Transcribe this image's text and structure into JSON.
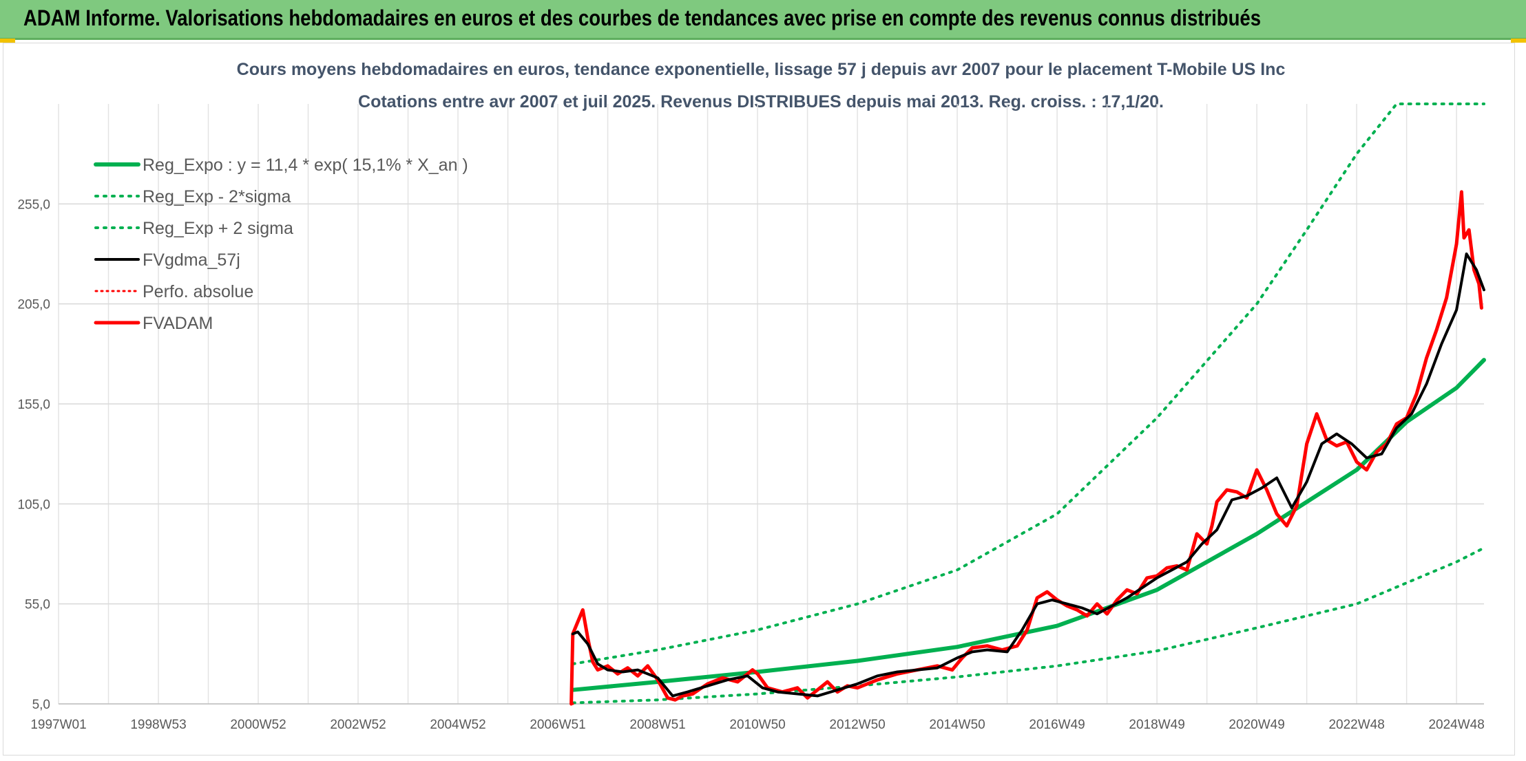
{
  "header": {
    "title": "ADAM Informe. Valorisations hebdomadaires en euros et des courbes de tendances avec prise en compte des revenus connus distribués"
  },
  "colors": {
    "header_bg": "#7fc97f",
    "green": "#00b050",
    "red": "#ff0000",
    "black": "#000000"
  },
  "chart_data": {
    "type": "line",
    "title": "Cours moyens hebdomadaires en euros, tendance exponentielle, lissage 57 j depuis avr 2007 pour le placement T-Mobile US Inc",
    "subtitle": "Cotations entre avr 2007 et juil 2025. Revenus DISTRIBUES depuis mai 2013. Reg. croiss. : 17,1/20.",
    "xlabel": "",
    "ylabel": "",
    "x_range": [
      1997.0,
      2025.55
    ],
    "ylim": [
      5,
      305
    ],
    "y_ticks": [
      "5,0",
      "55,0",
      "105,0",
      "155,0",
      "205,0",
      "255,0"
    ],
    "y_tick_values": [
      5,
      55,
      105,
      155,
      205,
      255
    ],
    "x_ticks": [
      {
        "label": "1997W01",
        "x": 1997.0
      },
      {
        "label": "1998W53",
        "x": 1999.0
      },
      {
        "label": "2000W52",
        "x": 2001.0
      },
      {
        "label": "2002W52",
        "x": 2003.0
      },
      {
        "label": "2004W52",
        "x": 2005.0
      },
      {
        "label": "2006W51",
        "x": 2007.0
      },
      {
        "label": "2008W51",
        "x": 2009.0
      },
      {
        "label": "2010W50",
        "x": 2011.0
      },
      {
        "label": "2012W50",
        "x": 2013.0
      },
      {
        "label": "2014W50",
        "x": 2015.0
      },
      {
        "label": "2016W49",
        "x": 2017.0
      },
      {
        "label": "2018W49",
        "x": 2019.0
      },
      {
        "label": "2020W49",
        "x": 2021.0
      },
      {
        "label": "2022W48",
        "x": 2023.0
      },
      {
        "label": "2024W48",
        "x": 2025.0
      }
    ],
    "grid": true,
    "legend_position": "top-left",
    "legend": [
      {
        "label": "Reg_Expo : y = 11,4 * exp( 15,1% *  X_an )",
        "color": "#00b050",
        "style": "solid",
        "width": 6
      },
      {
        "label": "Reg_Exp - 2*sigma",
        "color": "#00b050",
        "style": "dotted",
        "width": 4
      },
      {
        "label": "Reg_Exp + 2 sigma",
        "color": "#00b050",
        "style": "dotted",
        "width": 4
      },
      {
        "label": "FVgdma_57j",
        "color": "#000000",
        "style": "solid",
        "width": 4
      },
      {
        "label": "Perfo. absolue",
        "color": "#ff0000",
        "style": "dotted",
        "width": 3
      },
      {
        "label": "FVADAM",
        "color": "#ff0000",
        "style": "solid",
        "width": 5
      }
    ],
    "series": [
      {
        "name": "Reg_Expo : y = 11,4 * exp( 15,1% *  X_an )",
        "color": "#00b050",
        "style": "solid",
        "width": 6,
        "x": [
          2007.3,
          2009.0,
          2011.0,
          2013.0,
          2015.0,
          2017.0,
          2019.0,
          2021.0,
          2023.0,
          2024.0,
          2025.0,
          2025.55
        ],
        "y": [
          12,
          16,
          21,
          26.5,
          33.5,
          44,
          62,
          90,
          122,
          146,
          163,
          177
        ]
      },
      {
        "name": "Reg_Exp - 2*sigma",
        "color": "#00b050",
        "style": "dotted",
        "width": 4,
        "x": [
          2007.3,
          2009.0,
          2011.0,
          2013.0,
          2015.0,
          2017.0,
          2019.0,
          2021.0,
          2023.0,
          2024.0,
          2025.0,
          2025.55
        ],
        "y": [
          5.5,
          7,
          10,
          14,
          18.5,
          24,
          31.5,
          43,
          55,
          65.5,
          76,
          83
        ]
      },
      {
        "name": "Reg_Exp + 2 sigma",
        "color": "#00b050",
        "style": "dotted",
        "width": 4,
        "x": [
          2007.3,
          2009.0,
          2011.0,
          2013.0,
          2015.0,
          2017.0,
          2019.0,
          2021.0,
          2022.0,
          2023.0,
          2023.8,
          2024.5,
          2025.55
        ],
        "y": [
          25,
          32,
          42,
          55,
          72,
          100,
          148,
          205,
          242,
          280,
          305,
          305,
          305
        ]
      },
      {
        "name": "FVgdma_57j",
        "color": "#000000",
        "style": "solid",
        "width": 4,
        "x": [
          2007.3,
          2007.4,
          2007.6,
          2007.8,
          2008.0,
          2008.3,
          2008.6,
          2009.0,
          2009.3,
          2009.6,
          2010.0,
          2010.4,
          2010.8,
          2011.1,
          2011.4,
          2011.8,
          2012.2,
          2012.6,
          2013.0,
          2013.4,
          2013.8,
          2014.2,
          2014.6,
          2015.0,
          2015.3,
          2015.6,
          2016.0,
          2016.3,
          2016.6,
          2016.9,
          2017.2,
          2017.5,
          2017.8,
          2018.1,
          2018.4,
          2018.7,
          2019.0,
          2019.3,
          2019.6,
          2019.9,
          2020.2,
          2020.5,
          2020.8,
          2021.1,
          2021.4,
          2021.7,
          2022.0,
          2022.3,
          2022.6,
          2022.9,
          2023.2,
          2023.5,
          2023.8,
          2024.1,
          2024.4,
          2024.7,
          2025.0,
          2025.2,
          2025.4,
          2025.55
        ],
        "y": [
          40,
          41,
          35,
          25,
          22,
          21,
          22,
          18,
          9,
          11,
          14,
          17,
          19,
          13,
          11,
          10,
          9,
          12,
          15,
          19,
          21,
          22,
          23,
          28,
          31,
          32,
          31,
          42,
          55,
          57,
          55,
          53,
          50,
          54,
          58,
          63,
          68,
          72,
          76,
          85,
          92,
          107,
          109,
          113,
          118,
          103,
          116,
          135,
          140,
          135,
          128,
          130,
          143,
          150,
          165,
          185,
          202,
          230,
          222,
          212
        ],
        "source_precision": "approximate"
      },
      {
        "name": "Perfo. absolue",
        "color": "#ff0000",
        "style": "dotted",
        "width": 3,
        "x": [
          2007.3,
          2007.3
        ],
        "y": [
          5,
          5
        ]
      },
      {
        "name": "FVADAM",
        "color": "#ff0000",
        "style": "solid",
        "width": 5,
        "x": [
          2007.27,
          2007.3,
          2007.4,
          2007.5,
          2007.6,
          2007.7,
          2007.8,
          2008.0,
          2008.2,
          2008.4,
          2008.6,
          2008.8,
          2009.0,
          2009.2,
          2009.35,
          2009.5,
          2009.7,
          2010.0,
          2010.3,
          2010.6,
          2010.9,
          2011.0,
          2011.2,
          2011.5,
          2011.8,
          2012.0,
          2012.2,
          2012.4,
          2012.6,
          2012.8,
          2013.0,
          2013.4,
          2013.8,
          2014.2,
          2014.6,
          2014.9,
          2015.1,
          2015.3,
          2015.6,
          2015.9,
          2016.2,
          2016.4,
          2016.6,
          2016.8,
          2017.0,
          2017.2,
          2017.4,
          2017.6,
          2017.8,
          2018.0,
          2018.2,
          2018.4,
          2018.6,
          2018.8,
          2019.0,
          2019.2,
          2019.4,
          2019.6,
          2019.8,
          2020.0,
          2020.1,
          2020.2,
          2020.4,
          2020.6,
          2020.8,
          2021.0,
          2021.2,
          2021.4,
          2021.6,
          2021.8,
          2022.0,
          2022.2,
          2022.4,
          2022.6,
          2022.8,
          2023.0,
          2023.2,
          2023.4,
          2023.6,
          2023.8,
          2024.0,
          2024.2,
          2024.4,
          2024.6,
          2024.8,
          2025.0,
          2025.1,
          2025.15,
          2025.25,
          2025.35,
          2025.45,
          2025.5
        ],
        "y": [
          5,
          40,
          46,
          52,
          38,
          26,
          22,
          24,
          20,
          23,
          19,
          24,
          17,
          8,
          7,
          9,
          10,
          15,
          18,
          16,
          22,
          20,
          13,
          11,
          13,
          8,
          12,
          16,
          11,
          14,
          13,
          17,
          20,
          22,
          24,
          22,
          28,
          33,
          34,
          32,
          34,
          42,
          58,
          61,
          57,
          54,
          52,
          49,
          55,
          50,
          57,
          62,
          60,
          68,
          69,
          73,
          74,
          72,
          90,
          85,
          94,
          106,
          112,
          111,
          108,
          122,
          112,
          100,
          94,
          104,
          135,
          150,
          137,
          134,
          136,
          126,
          122,
          131,
          135,
          145,
          148,
          160,
          178,
          192,
          208,
          235,
          261,
          238,
          242,
          222,
          215,
          203
        ],
        "source_precision": "approximate"
      }
    ]
  }
}
